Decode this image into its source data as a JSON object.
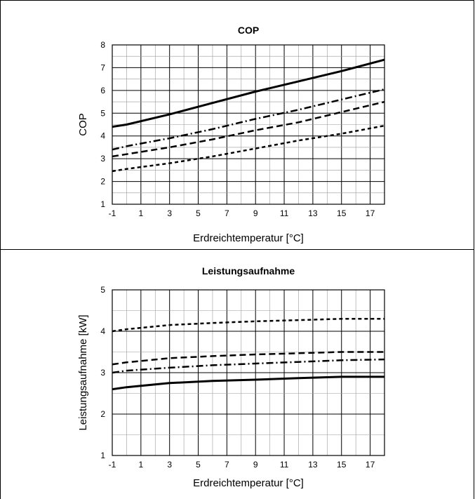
{
  "chart_data": [
    {
      "type": "line",
      "title": "COP",
      "xlabel": "Erdreichtemperatur [°C]",
      "ylabel": "COP",
      "xlim": [
        -1,
        18
      ],
      "ylim": [
        1,
        8
      ],
      "xticks": [
        -1,
        1,
        3,
        5,
        7,
        9,
        11,
        13,
        15,
        17
      ],
      "yticks": [
        1,
        2,
        3,
        4,
        5,
        6,
        7,
        8
      ],
      "grid": true,
      "series": [
        {
          "style": "solid",
          "x": [
            -1,
            0,
            3,
            6,
            9,
            12,
            15,
            18
          ],
          "y": [
            4.4,
            4.5,
            4.95,
            5.45,
            5.95,
            6.4,
            6.85,
            7.35
          ]
        },
        {
          "style": "dashdot",
          "x": [
            -1,
            0,
            3,
            6,
            9,
            12,
            15,
            18
          ],
          "y": [
            3.4,
            3.55,
            3.9,
            4.3,
            4.75,
            5.15,
            5.6,
            6.05
          ]
        },
        {
          "style": "dashed",
          "x": [
            -1,
            0,
            3,
            6,
            9,
            12,
            15,
            18
          ],
          "y": [
            3.1,
            3.2,
            3.5,
            3.85,
            4.25,
            4.6,
            5.05,
            5.5
          ]
        },
        {
          "style": "dotted",
          "x": [
            -1,
            0,
            3,
            6,
            9,
            12,
            15,
            18
          ],
          "y": [
            2.45,
            2.55,
            2.8,
            3.1,
            3.45,
            3.8,
            4.1,
            4.45
          ]
        }
      ]
    },
    {
      "type": "line",
      "title": "Leistungsaufnahme",
      "xlabel": "Erdreichtemperatur [°C]",
      "ylabel": "Leistungsaufnahme [kW]",
      "xlim": [
        -1,
        18
      ],
      "ylim": [
        1,
        5
      ],
      "xticks": [
        -1,
        1,
        3,
        5,
        7,
        9,
        11,
        13,
        15,
        17
      ],
      "yticks": [
        1,
        2,
        3,
        4,
        5
      ],
      "grid": true,
      "series": [
        {
          "style": "solid",
          "x": [
            -1,
            0,
            3,
            6,
            9,
            12,
            15,
            18
          ],
          "y": [
            2.6,
            2.65,
            2.75,
            2.8,
            2.83,
            2.87,
            2.9,
            2.9
          ]
        },
        {
          "style": "dashdot",
          "x": [
            -1,
            0,
            3,
            6,
            9,
            12,
            15,
            18
          ],
          "y": [
            3.0,
            3.05,
            3.12,
            3.18,
            3.22,
            3.26,
            3.3,
            3.32
          ]
        },
        {
          "style": "dashed",
          "x": [
            -1,
            0,
            3,
            6,
            9,
            12,
            15,
            18
          ],
          "y": [
            3.2,
            3.25,
            3.35,
            3.4,
            3.44,
            3.47,
            3.5,
            3.5
          ]
        },
        {
          "style": "dotted",
          "x": [
            -1,
            0,
            3,
            6,
            9,
            12,
            15,
            18
          ],
          "y": [
            4.0,
            4.05,
            4.15,
            4.2,
            4.24,
            4.27,
            4.3,
            4.3
          ]
        }
      ]
    }
  ]
}
